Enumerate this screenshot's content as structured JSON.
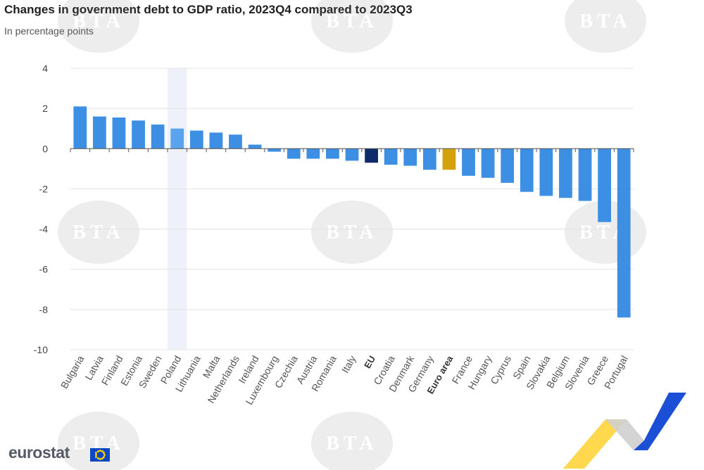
{
  "title": "Changes in government debt to GDP ratio, 2023Q4 compared to 2023Q3",
  "subtitle": "In percentage points",
  "brand": "eurostat",
  "watermark_text": "BTA",
  "colors": {
    "bar": "#3d8fe3",
    "bar_highlight": "#5aa4ef",
    "eu": "#0e2a6b",
    "euro_area": "#d4a20c",
    "grid": "#e3e3e3",
    "hover_band": "#eef1fa"
  },
  "chart_data": {
    "type": "bar",
    "title": "Changes in government debt to GDP ratio, 2023Q4 compared to 2023Q3",
    "subtitle": "In percentage points",
    "xlabel": "",
    "ylabel": "",
    "ylim": [
      -10,
      4
    ],
    "yticks": [
      4,
      2,
      0,
      -2,
      -4,
      -6,
      -8,
      -10
    ],
    "grid": true,
    "categories": [
      "Bulgaria",
      "Latvia",
      "Finland",
      "Estonia",
      "Sweden",
      "Poland",
      "Lithuania",
      "Malta",
      "Netherlands",
      "Ireland",
      "Luxembourg",
      "Czechia",
      "Austria",
      "Romania",
      "Italy",
      "EU",
      "Croatia",
      "Denmark",
      "Germany",
      "Euro area",
      "France",
      "Hungary",
      "Cyprus",
      "Spain",
      "Slovakia",
      "Belgium",
      "Slovenia",
      "Greece",
      "Portugal"
    ],
    "values": [
      2.1,
      1.6,
      1.55,
      1.4,
      1.2,
      1.0,
      0.9,
      0.8,
      0.7,
      0.2,
      -0.15,
      -0.5,
      -0.5,
      -0.5,
      -0.6,
      -0.7,
      -0.8,
      -0.85,
      -1.05,
      -1.05,
      -1.35,
      -1.45,
      -1.7,
      -2.15,
      -2.35,
      -2.45,
      -2.6,
      -3.65,
      -8.4
    ],
    "bold_categories": [
      "EU",
      "Euro area"
    ],
    "highlighted_category": "Poland"
  }
}
